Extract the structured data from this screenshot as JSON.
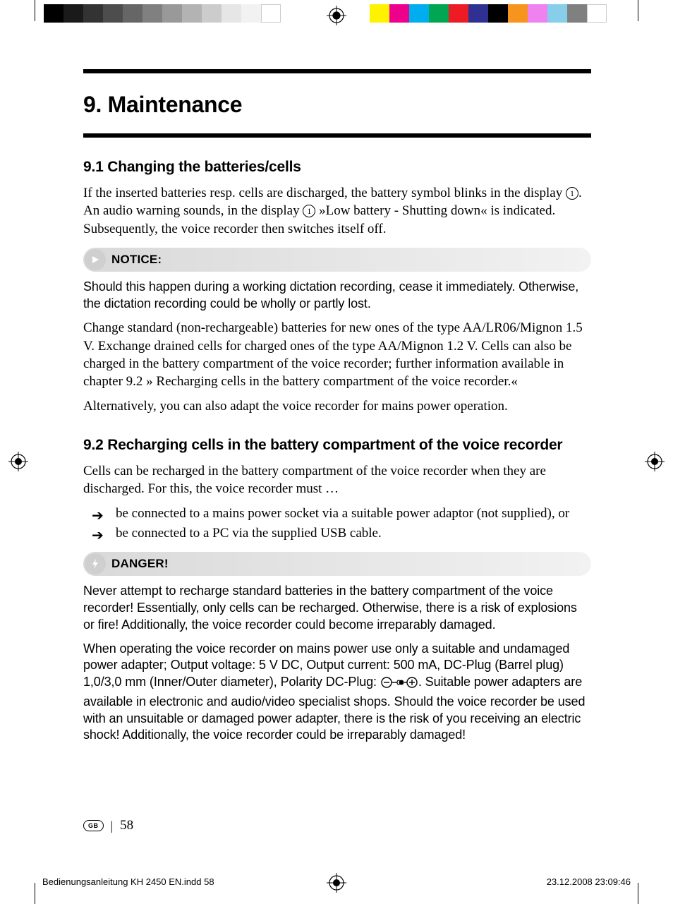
{
  "printer_bars": {
    "grayscale": [
      "#000000",
      "#1a1a1a",
      "#333333",
      "#4d4d4d",
      "#666666",
      "#808080",
      "#999999",
      "#b3b3b3",
      "#cccccc",
      "#e6e6e6",
      "#f2f2f2",
      "#ffffff"
    ],
    "colors": [
      "#fff200",
      "#ec008c",
      "#00aeef",
      "#00a651",
      "#ed1c24",
      "#2e3192",
      "#000000",
      "#f7941d",
      "#ee82ee",
      "#87ceeb",
      "#808080",
      "#ffffff"
    ]
  },
  "title": "9. Maintenance",
  "section1": {
    "heading": "9.1 Changing the batteries/cells",
    "p1a": "If the inserted batteries resp. cells are discharged, the battery symbol blinks in the display ",
    "p1b": ". An audio warning sounds, in the display ",
    "p1c": " »Low battery - Shutting down« is indicated. Subsequently, the voice recorder then switches itself off.",
    "ref_num": "1",
    "notice_label": "NOTICE:",
    "notice_text": "Should this happen during a working dictation recording, cease it immediately. Otherwise, the dictation recording could be wholly or partly lost.",
    "p2": "Change standard (non-rechargeable) batteries for new ones of the type AA/LR06/Mignon 1.5 V. Exchange drained cells for charged ones of the type AA/Mignon 1.2 V. Cells can also be charged in the battery compartment of the voice recorder; further information available in chapter 9.2 » Recharging cells in the battery compartment of the voice recorder.«",
    "p3": "Alternatively, you can also adapt the voice recorder for mains power operation."
  },
  "section2": {
    "heading": "9.2 Recharging cells in the battery compartment of the voice recorder",
    "p1": "Cells can be recharged in the battery compartment of the voice recorder when they are discharged. For this, the voice recorder must …",
    "bullets": [
      "be connected to a mains power socket via a suitable power adaptor (not supplied), or",
      "be connected to a PC via the supplied USB cable."
    ],
    "danger_label": "DANGER!",
    "danger_p1": "Never attempt to recharge standard batteries in the battery compartment of the voice recorder! Essentially, only cells can be recharged. Otherwise, there is a risk of explosions or fire! Additionally, the voice recorder could become irreparably damaged.",
    "danger_p2a": "When operating the voice recorder on mains power use only a suitable and undamaged power adapter; Output voltage: 5 V DC, Output current: 500 mA, DC-Plug (Barrel plug) 1,0/3,0 mm (Inner/Outer diameter), Polarity DC-Plug: ",
    "danger_p2b": ". Suitable power adapters are available in electronic and audio/video specialist shops. Should the voice recorder be used with an unsuitable or damaged power adapter, there is the risk of you receiving an electric shock! Additionally, the voice recorder could be irreparably damaged!"
  },
  "callout_colors": {
    "notice_bg_start": "#d9d9d9",
    "notice_bg_end": "#f2f2f2",
    "notice_badge": "#cfcfcf",
    "danger_bg_start": "#d9d9d9",
    "danger_bg_end": "#f2f2f2",
    "danger_badge": "#cfcfcf",
    "triangle_fill": "#ffffff",
    "bolt_fill": "#ffffff"
  },
  "footer": {
    "lang": "GB",
    "page": "58"
  },
  "slug": {
    "file": "Bedienungsanleitung KH 2450 EN.indd   58",
    "timestamp": "23.12.2008   23:09:46"
  }
}
